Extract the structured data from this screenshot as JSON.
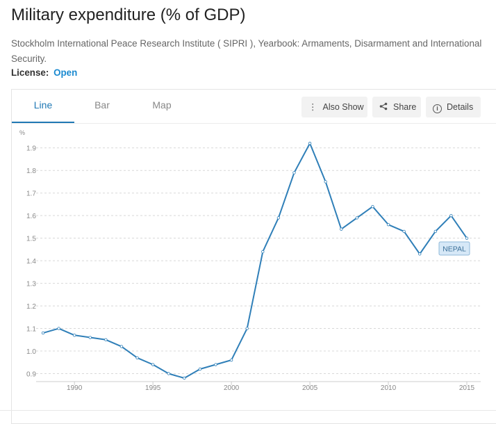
{
  "page": {
    "title": "Military expenditure (% of GDP)",
    "source": "Stockholm International Peace Research Institute ( SIPRI ), Yearbook: Armaments, Disarmament and International Security.",
    "license_label": "License:",
    "license_value": "Open"
  },
  "tabs": [
    {
      "label": "Line",
      "active": true
    },
    {
      "label": "Bar",
      "active": false
    },
    {
      "label": "Map",
      "active": false
    }
  ],
  "toolbar": {
    "also_show_label": "Also Show",
    "share_label": "Share",
    "details_label": "Details",
    "also_show_icon": "vertical-ellipsis-icon",
    "share_icon": "share-icon",
    "details_icon": "info-icon"
  },
  "colors": {
    "accent": "#1f78b4",
    "line": "#2f7fb8",
    "link": "#1b8ad0",
    "label_bg": "#d6e8f7"
  },
  "chart_data": {
    "type": "line",
    "title": "",
    "xlabel": "",
    "ylabel": "%",
    "xlim": [
      1988,
      2015
    ],
    "ylim": [
      0.88,
      1.97
    ],
    "x_ticks": [
      1990,
      1995,
      2000,
      2005,
      2010,
      2015
    ],
    "y_ticks": [
      0.9,
      1.0,
      1.1,
      1.2,
      1.3,
      1.4,
      1.5,
      1.6,
      1.7,
      1.8,
      1.9
    ],
    "grid": "horizontal-dashed",
    "series": [
      {
        "name": "NEPAL",
        "x": [
          1988,
          1989,
          1990,
          1991,
          1992,
          1993,
          1994,
          1995,
          1996,
          1997,
          1998,
          1999,
          2000,
          2001,
          2002,
          2003,
          2004,
          2005,
          2006,
          2007,
          2008,
          2009,
          2010,
          2011,
          2012,
          2013,
          2014,
          2015
        ],
        "values": [
          1.08,
          1.1,
          1.07,
          1.06,
          1.05,
          1.02,
          0.97,
          0.94,
          0.9,
          0.88,
          0.92,
          0.94,
          0.96,
          1.1,
          1.44,
          1.59,
          1.79,
          1.92,
          1.75,
          1.54,
          1.59,
          1.64,
          1.56,
          1.53,
          1.43,
          1.53,
          1.6,
          1.5
        ]
      }
    ]
  }
}
